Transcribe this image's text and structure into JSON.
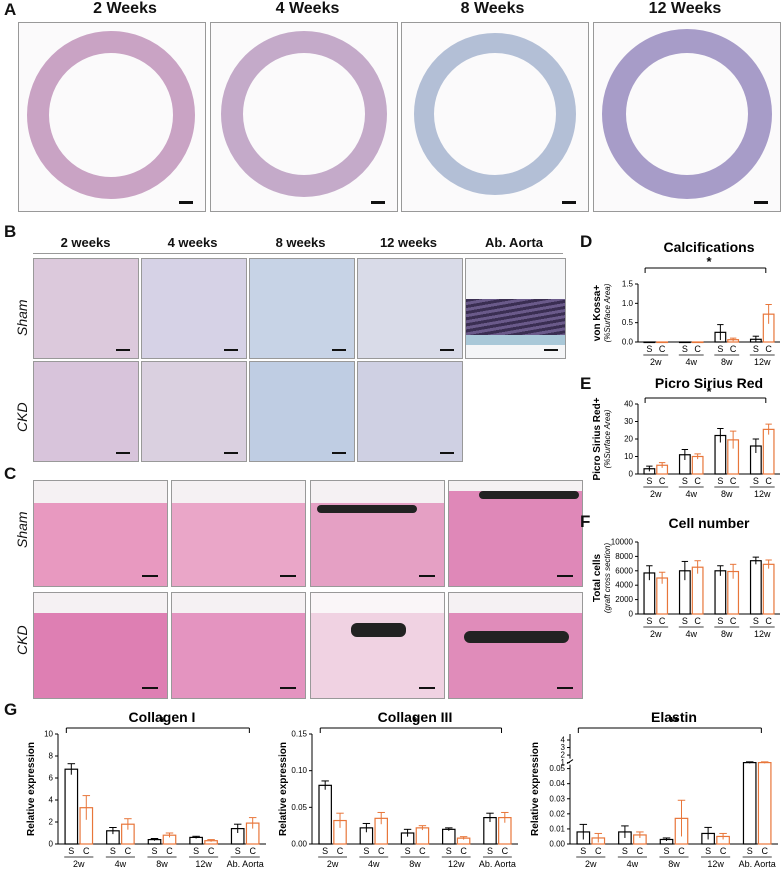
{
  "panels": {
    "A": {
      "letter": "A",
      "titles": [
        "2 Weeks",
        "4 Weeks",
        "8 Weeks",
        "12 Weeks"
      ]
    },
    "B": {
      "letter": "B",
      "titles": [
        "2 weeks",
        "4 weeks",
        "8 weeks",
        "12 weeks",
        "Ab. Aorta"
      ],
      "rows": [
        "Sham",
        "CKD"
      ]
    },
    "C": {
      "letter": "C",
      "rows": [
        "Sham",
        "CKD"
      ]
    },
    "D": {
      "letter": "D"
    },
    "E": {
      "letter": "E"
    },
    "F": {
      "letter": "F"
    },
    "G": {
      "letter": "G"
    }
  },
  "colors": {
    "sham": "#000000",
    "ckd": "#e8763a",
    "stain_A": "#c9a9c6",
    "stain_C": "#e58ab8"
  },
  "chart_data": [
    {
      "id": "D",
      "type": "bar",
      "title": "Calcifications",
      "ylabel": "von Kossa+",
      "ylabel2": "(%Surface Area)",
      "categories": [
        "2w",
        "4w",
        "8w",
        "12w"
      ],
      "group_tick_labels": [
        "S",
        "C"
      ],
      "ylim": [
        0,
        1.5
      ],
      "yticks": [
        "0.0",
        "0.5",
        "1.0",
        "1.5"
      ],
      "series": [
        {
          "name": "S",
          "values": [
            0.0,
            0.0,
            0.25,
            0.07
          ],
          "err": [
            0.0,
            0.0,
            0.2,
            0.08
          ]
        },
        {
          "name": "C",
          "values": [
            0.0,
            0.0,
            0.06,
            0.72
          ],
          "err": [
            0.0,
            0.0,
            0.04,
            0.25
          ]
        }
      ],
      "significance": "*"
    },
    {
      "id": "E",
      "type": "bar",
      "title": "Picro Sirius Red",
      "ylabel": "Picro Sirius Red+",
      "ylabel2": "(%Surface Area)",
      "categories": [
        "2w",
        "4w",
        "8w",
        "12w"
      ],
      "group_tick_labels": [
        "S",
        "C"
      ],
      "ylim": [
        0,
        40
      ],
      "yticks": [
        "0",
        "10",
        "20",
        "30",
        "40"
      ],
      "series": [
        {
          "name": "S",
          "values": [
            3,
            11,
            22,
            16
          ],
          "err": [
            1.5,
            3,
            4,
            4
          ]
        },
        {
          "name": "C",
          "values": [
            5,
            10,
            19.5,
            25.5
          ],
          "err": [
            1.5,
            1.5,
            5,
            3
          ]
        }
      ],
      "significance": "*"
    },
    {
      "id": "F",
      "type": "bar",
      "title": "Cell number",
      "ylabel": "Total cells",
      "ylabel2": "(graft cross section)",
      "categories": [
        "2w",
        "4w",
        "8w",
        "12w"
      ],
      "group_tick_labels": [
        "S",
        "C"
      ],
      "ylim": [
        0,
        10000
      ],
      "yticks": [
        "0",
        "2000",
        "4000",
        "6000",
        "8000",
        "10000"
      ],
      "series": [
        {
          "name": "S",
          "values": [
            5700,
            6000,
            6000,
            7400
          ],
          "err": [
            1000,
            1300,
            700,
            500
          ]
        },
        {
          "name": "C",
          "values": [
            5000,
            6500,
            5900,
            6900
          ],
          "err": [
            800,
            900,
            1000,
            600
          ]
        }
      ]
    },
    {
      "id": "G1",
      "type": "bar",
      "title": "Collagen I",
      "ylabel": "Relative expression",
      "categories": [
        "2w",
        "4w",
        "8w",
        "12w",
        "Ab. Aorta"
      ],
      "group_tick_labels": [
        "S",
        "C"
      ],
      "ylim": [
        0,
        10
      ],
      "yticks": [
        "0",
        "2",
        "4",
        "6",
        "8",
        "10"
      ],
      "series": [
        {
          "name": "S",
          "values": [
            6.8,
            1.2,
            0.4,
            0.6,
            1.4
          ],
          "err": [
            0.5,
            0.3,
            0.1,
            0.1,
            0.4
          ]
        },
        {
          "name": "C",
          "values": [
            3.3,
            1.8,
            0.8,
            0.3,
            1.9
          ],
          "err": [
            1.1,
            0.5,
            0.2,
            0.1,
            0.5
          ]
        }
      ],
      "significance": "*"
    },
    {
      "id": "G2",
      "type": "bar",
      "title": "Collagen III",
      "ylabel": "Relative expression",
      "categories": [
        "2w",
        "4w",
        "8w",
        "12w",
        "Ab. Aorta"
      ],
      "group_tick_labels": [
        "S",
        "C"
      ],
      "ylim": [
        0,
        0.15
      ],
      "yticks": [
        "0.00",
        "0.05",
        "0.10",
        "0.15"
      ],
      "series": [
        {
          "name": "S",
          "values": [
            0.08,
            0.022,
            0.015,
            0.02,
            0.036
          ],
          "err": [
            0.006,
            0.006,
            0.005,
            0.002,
            0.006
          ]
        },
        {
          "name": "C",
          "values": [
            0.032,
            0.035,
            0.022,
            0.008,
            0.036
          ],
          "err": [
            0.01,
            0.008,
            0.003,
            0.002,
            0.007
          ]
        }
      ],
      "significance": "*"
    },
    {
      "id": "G3",
      "type": "bar",
      "title": "Elastin",
      "ylabel": "Relative expression",
      "categories": [
        "2w",
        "4w",
        "8w",
        "12w",
        "Ab. Aorta"
      ],
      "group_tick_labels": [
        "S",
        "C"
      ],
      "ylim_lower": [
        0,
        0.05
      ],
      "yticks_lower": [
        "0.00",
        "0.01",
        "0.02",
        "0.03",
        "0.04",
        "0.05"
      ],
      "ylim_upper": [
        1,
        4
      ],
      "yticks_upper": [
        "1",
        "2",
        "3",
        "4"
      ],
      "series": [
        {
          "name": "S",
          "values": [
            0.008,
            0.008,
            0.003,
            0.007,
            1.0
          ],
          "err": [
            0.005,
            0.004,
            0.001,
            0.004,
            0.1
          ]
        },
        {
          "name": "C",
          "values": [
            0.004,
            0.006,
            0.017,
            0.005,
            1.0
          ],
          "err": [
            0.003,
            0.002,
            0.012,
            0.002,
            0.1
          ]
        }
      ],
      "significance": "**"
    }
  ]
}
